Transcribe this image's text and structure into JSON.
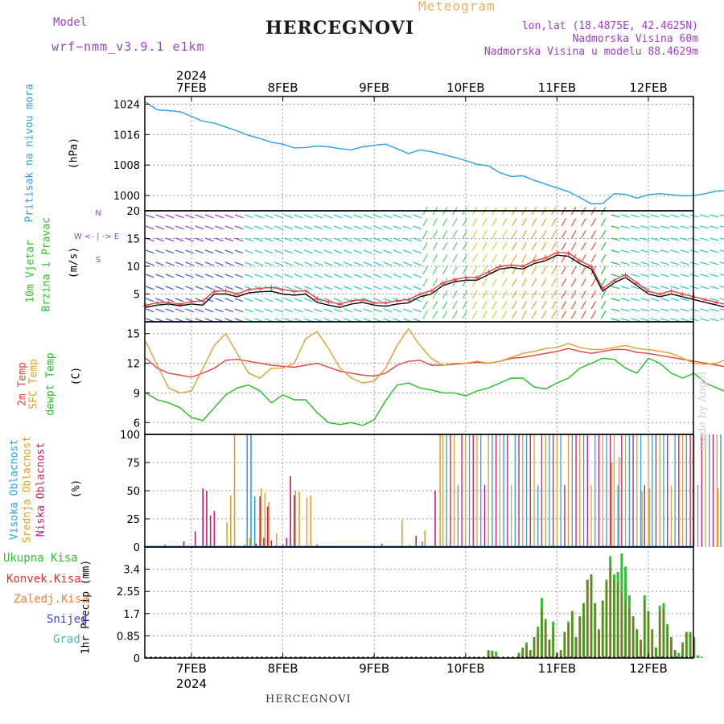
{
  "header": {
    "model_label": "Model",
    "model_name": "wrf−nmm_v3.9.1 e1km",
    "station": "HERCEGNOVI",
    "meteogram": "Meteogram",
    "lonlat": "lon,lat (18.4875E, 42.4625N)",
    "elevation": "Nadmorska Visina 60m",
    "model_elevation": "Nadmorska Visina u modelu 88.4629m"
  },
  "footer": {
    "station": "HERCEGNOVI",
    "made_by": "made by Angel"
  },
  "axis": {
    "year": "2024",
    "days": [
      "7FEB",
      "8FEB",
      "9FEB",
      "10FEB",
      "11FEB",
      "12FEB"
    ]
  },
  "colors": {
    "pressure": "#2aa0e8",
    "t2m": "#e84040",
    "sfc": "#e0a030",
    "dewpt": "#20c020",
    "high_cloud": "#30a0e0",
    "mid_cloud": "#e0a030",
    "low_cloud": "#c81870",
    "precip_total": "#30c030",
    "precip_conv": "#e03030",
    "precip_strat": "#f08030",
    "snow": "#4040e0",
    "hail": "#30c0c0",
    "label_purple": "#a040c8"
  },
  "labels": {
    "pressure": [
      "Pritisak na nivou mora",
      "(hPa)"
    ],
    "wind": [
      "10m Vjetar",
      "Brzina i Pravac",
      "(m/s)"
    ],
    "compass": [
      "N",
      "W <- | -> E",
      "S"
    ],
    "temp": [
      "2m Temp",
      "SFC Temp",
      "dewpt Temp",
      "(C)"
    ],
    "cloud": [
      "Visoka Oblacnost",
      "Srednja Oblacnost",
      "Niska Oblacnost",
      "(%)"
    ],
    "precip_legend": [
      "Ukupna Kisa",
      "Konvek.Kisa",
      "Zaledj.Kisa",
      "Snijeg",
      "Grad"
    ],
    "precip_unit": "1hr Precip (mm)"
  },
  "chart_data": [
    {
      "type": "line",
      "panel": "pressure",
      "x_unit": "hours from 7FEB 00UTC",
      "x": [
        -12,
        -9,
        -6,
        -3,
        0,
        3,
        6,
        9,
        12,
        15,
        18,
        21,
        24,
        27,
        30,
        33,
        36,
        39,
        42,
        45,
        48,
        51,
        54,
        57,
        60,
        63,
        66,
        69,
        72,
        75,
        78,
        81,
        84,
        87,
        90,
        93,
        96,
        99,
        102,
        105,
        108,
        111,
        114,
        117,
        120,
        123,
        126,
        129,
        132,
        135,
        138,
        141,
        144
      ],
      "series": [
        {
          "values": [
            1024.5,
            1022.5,
            1022.3,
            1022.0,
            1020.8,
            1019.5,
            1019.0,
            1018.0,
            1017.0,
            1015.8,
            1015.0,
            1014.0,
            1013.5,
            1012.5,
            1012.6,
            1013.0,
            1012.8,
            1012.3,
            1012.0,
            1012.8,
            1013.2,
            1013.5,
            1012.3,
            1011.0,
            1012.0,
            1011.5,
            1010.8,
            1010.0,
            1009.2,
            1008.2,
            1007.8,
            1006.0,
            1005.0,
            1005.2,
            1004.0,
            1003.0,
            1002.0,
            1001.0,
            999.5,
            997.8,
            997.9,
            1000.5,
            1000.3,
            999.3,
            1000.2,
            1000.5,
            1000.2,
            999.9,
            1000.0,
            1000.5,
            1001.2,
            1001.3,
            1001.2
          ]
        }
      ],
      "ylabel": "(hPa)",
      "yticks": [
        1000,
        1008,
        1016,
        1024
      ],
      "ylim": [
        996,
        1026
      ]
    },
    {
      "type": "line",
      "panel": "wind",
      "x_unit": "hours from 7FEB 00UTC",
      "x": [
        -12,
        -9,
        -6,
        -3,
        0,
        3,
        6,
        9,
        12,
        15,
        18,
        21,
        24,
        27,
        30,
        33,
        36,
        39,
        42,
        45,
        48,
        51,
        54,
        57,
        60,
        63,
        66,
        69,
        72,
        75,
        78,
        81,
        84,
        87,
        90,
        93,
        96,
        99,
        102,
        105,
        108,
        111,
        114,
        117,
        120,
        123,
        126,
        129,
        132,
        135,
        138,
        141,
        144
      ],
      "series": [
        {
          "values": [
            2.6,
            3.0,
            3.2,
            2.9,
            3.2,
            3.0,
            5.0,
            5.0,
            4.5,
            5.2,
            5.4,
            5.5,
            5.0,
            4.8,
            5.0,
            3.5,
            3.0,
            2.6,
            3.2,
            3.5,
            3.0,
            2.8,
            3.2,
            3.4,
            4.5,
            5.0,
            6.5,
            7.2,
            7.5,
            7.5,
            8.5,
            9.5,
            9.8,
            9.5,
            10.5,
            11.0,
            12.0,
            11.8,
            10.5,
            9.5,
            5.5,
            7.0,
            8.0,
            6.5,
            5.0,
            4.5,
            5.0,
            4.5,
            4.0,
            3.5,
            3.0,
            2.5,
            2.8
          ]
        },
        {
          "values": [
            3.0,
            3.4,
            3.5,
            3.2,
            3.6,
            3.8,
            5.5,
            5.6,
            5.0,
            5.8,
            6.0,
            6.2,
            5.8,
            5.5,
            5.6,
            4.2,
            3.6,
            3.2,
            3.8,
            4.0,
            3.4,
            3.4,
            3.8,
            4.0,
            5.0,
            5.6,
            7.0,
            7.6,
            8.0,
            8.0,
            9.0,
            10.0,
            10.2,
            10.0,
            11.0,
            11.5,
            12.5,
            12.4,
            11.0,
            10.0,
            6.0,
            7.5,
            8.5,
            7.0,
            5.5,
            5.0,
            5.6,
            5.0,
            4.5,
            4.0,
            3.5,
            3.0,
            3.2
          ]
        }
      ],
      "ylabel": "(m/s)",
      "yticks": [
        5,
        10,
        15,
        20
      ],
      "ylim": [
        0,
        20
      ]
    },
    {
      "type": "line",
      "panel": "temperature",
      "x_unit": "hours from 7FEB 00UTC",
      "x": [
        -12,
        -9,
        -6,
        -3,
        0,
        3,
        6,
        9,
        12,
        15,
        18,
        21,
        24,
        27,
        30,
        33,
        36,
        39,
        42,
        45,
        48,
        51,
        54,
        57,
        60,
        63,
        66,
        69,
        72,
        75,
        78,
        81,
        84,
        87,
        90,
        93,
        96,
        99,
        102,
        105,
        108,
        111,
        114,
        117,
        120,
        123,
        126,
        129,
        132,
        135,
        138,
        141,
        144
      ],
      "series": [
        {
          "values": [
            12.5,
            11.5,
            11.0,
            10.8,
            10.6,
            11.0,
            11.5,
            12.3,
            12.4,
            12.2,
            12.0,
            11.8,
            11.7,
            11.6,
            11.8,
            12.0,
            11.6,
            11.2,
            11.0,
            10.8,
            10.7,
            11.0,
            11.8,
            12.2,
            12.3,
            11.8,
            11.8,
            11.9,
            12.0,
            12.1,
            12.0,
            12.2,
            12.5,
            12.6,
            12.8,
            13.0,
            13.2,
            13.5,
            13.2,
            13.0,
            13.2,
            13.4,
            13.4,
            13.1,
            13.0,
            12.8,
            12.6,
            12.4,
            12.2,
            12.0,
            11.8,
            11.6,
            11.4
          ]
        },
        {
          "values": [
            14.2,
            11.8,
            9.5,
            9.0,
            9.2,
            11.5,
            13.8,
            15.0,
            13.0,
            11.0,
            10.5,
            11.5,
            11.5,
            12.0,
            14.5,
            15.2,
            13.5,
            11.5,
            10.5,
            10.0,
            10.2,
            11.5,
            13.8,
            15.5,
            13.8,
            12.5,
            11.8,
            12.0,
            12.0,
            12.2,
            12.0,
            12.2,
            12.6,
            13.0,
            13.2,
            13.5,
            13.6,
            14.0,
            13.6,
            13.4,
            13.4,
            13.6,
            13.8,
            13.5,
            13.4,
            13.2,
            13.0,
            12.5,
            12.0,
            11.9,
            12.0,
            12.5,
            13.3
          ]
        },
        {
          "values": [
            9.0,
            8.3,
            8.0,
            7.5,
            6.5,
            6.2,
            7.5,
            8.8,
            9.5,
            9.8,
            9.2,
            8.0,
            8.8,
            8.3,
            8.3,
            7.0,
            6.0,
            5.8,
            6.0,
            5.7,
            6.3,
            8.2,
            9.8,
            10.0,
            9.5,
            9.3,
            9.0,
            9.0,
            8.7,
            9.2,
            9.5,
            10.0,
            10.5,
            10.5,
            9.6,
            9.4,
            10.0,
            10.5,
            11.5,
            12.0,
            12.5,
            12.4,
            11.5,
            11.0,
            12.5,
            12.0,
            11.0,
            10.5,
            11.0,
            10.0,
            9.5,
            9.0,
            8.6
          ]
        }
      ],
      "ylabel": "(C)",
      "yticks": [
        6,
        9,
        12,
        15
      ],
      "ylim": [
        4.8,
        16.2
      ]
    },
    {
      "type": "bar",
      "panel": "cloud",
      "x_unit": "hours from 7FEB 00UTC",
      "series": [
        {
          "values": {
            "-7": 2,
            "-2": 5,
            "1": 14,
            "3": 52,
            "4": 50,
            "5": 28,
            "6": 32,
            "14": 2,
            "17": 3,
            "18": 45,
            "19": 8,
            "20": 36,
            "21": 6,
            "24": 2,
            "25": 8,
            "26": 63,
            "27": 46,
            "33": 2,
            "50": 3,
            "59": 10,
            "64": 50
          }
        },
        {
          "values": {
            "9": 22,
            "10": 46,
            "11": 100,
            "15": 8,
            "18": 52,
            "19": 48,
            "20": 40,
            "22": 12,
            "27": 50,
            "28": 49,
            "30": 44,
            "31": 46,
            "55": 24,
            "57": 2,
            "61": 15,
            "65": 100,
            "110": 75,
            "112": 80,
            "118": 50,
            "120": 52,
            "138": 52
          }
        },
        {
          "values": {
            "14": 100,
            "15": 100,
            "16": 45,
            "60": 5
          }
        }
      ],
      "ylabel": "(%)",
      "yticks": [
        0,
        25,
        50,
        75,
        100
      ],
      "ylim": [
        0,
        100
      ]
    },
    {
      "type": "bar",
      "panel": "precip",
      "x_unit": "hours from 7FEB 00UTC",
      "series": [
        {
          "values": {
            "29": 0.05,
            "78": 0.3,
            "79": 0.28,
            "80": 0.25,
            "86": 0.2,
            "87": 0.4,
            "88": 0.6,
            "89": 0.3,
            "90": 0.8,
            "91": 1.2,
            "92": 2.3,
            "93": 1.5,
            "94": 0.7,
            "95": 1.4,
            "96": 0.2,
            "97": 0.3,
            "98": 1.0,
            "99": 1.4,
            "100": 1.8,
            "101": 0.8,
            "102": 1.6,
            "103": 2.1,
            "104": 3.0,
            "105": 3.2,
            "106": 2.1,
            "107": 1.1,
            "108": 2.2,
            "109": 3.0,
            "110": 3.9,
            "111": 3.2,
            "112": 3.3,
            "113": 4.0,
            "114": 3.5,
            "115": 2.4,
            "116": 1.6,
            "117": 1.1,
            "118": 0.7,
            "119": 2.4,
            "120": 1.8,
            "121": 1.1,
            "122": 0.4,
            "123": 2.0,
            "124": 2.1,
            "125": 1.3,
            "126": 0.8,
            "127": 0.3,
            "128": 0.2,
            "129": 0.6,
            "130": 1.0,
            "131": 1.0,
            "132": 0.8,
            "133": 0.1,
            "134": 0.05
          }
        },
        {
          "values": {
            "29": 0.05,
            "78": 0.3,
            "79": 0.28,
            "86": 0.2,
            "87": 0.4,
            "88": 0.5,
            "89": 0.3,
            "90": 0.8,
            "91": 1.0,
            "92": 1.9,
            "93": 1.4,
            "94": 0.7,
            "95": 1.2,
            "97": 0.3,
            "98": 1.0,
            "99": 1.3,
            "100": 1.8,
            "101": 0.8,
            "102": 1.6,
            "103": 2.1,
            "104": 3.0,
            "105": 3.2,
            "106": 2.1,
            "107": 1.1,
            "108": 2.2,
            "109": 2.9,
            "110": 3.5,
            "111": 3.0,
            "112": 2.9,
            "113": 2.5,
            "114": 2.2,
            "115": 1.9,
            "116": 1.6,
            "117": 1.1,
            "118": 0.7,
            "119": 2.2,
            "120": 1.8,
            "121": 1.1,
            "122": 0.4,
            "123": 1.8,
            "124": 1.9,
            "125": 1.2,
            "126": 0.8,
            "127": 0.3,
            "129": 0.5,
            "130": 1.0,
            "131": 0.9,
            "132": 0.7
          }
        }
      ],
      "ylabel": "1hr Precip (mm)",
      "yticks": [
        0,
        0.85,
        1.7,
        2.55,
        3.4
      ],
      "ylim": [
        0,
        4.25
      ]
    }
  ]
}
